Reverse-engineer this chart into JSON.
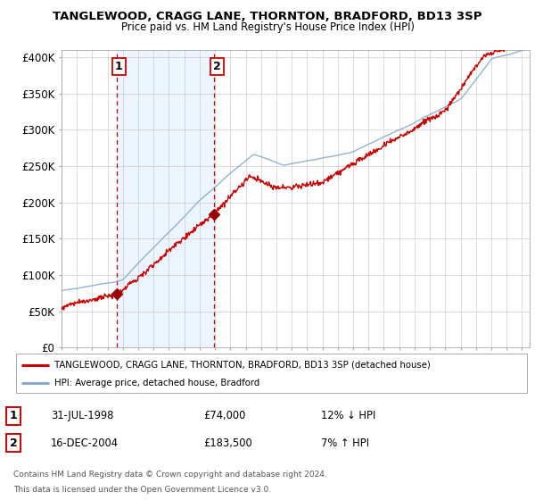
{
  "title1": "TANGLEWOOD, CRAGG LANE, THORNTON, BRADFORD, BD13 3SP",
  "title2": "Price paid vs. HM Land Registry's House Price Index (HPI)",
  "ylim": [
    0,
    410000
  ],
  "yticks": [
    0,
    50000,
    100000,
    150000,
    200000,
    250000,
    300000,
    350000,
    400000
  ],
  "ytick_labels": [
    "£0",
    "£50K",
    "£100K",
    "£150K",
    "£200K",
    "£250K",
    "£300K",
    "£350K",
    "£400K"
  ],
  "xlim_start": 1995.0,
  "xlim_end": 2025.5,
  "sale1_date": 1998.58,
  "sale1_price": 74000,
  "sale1_label": "1",
  "sale2_date": 2004.96,
  "sale2_price": 183500,
  "sale2_label": "2",
  "legend_line1": "TANGLEWOOD, CRAGG LANE, THORNTON, BRADFORD, BD13 3SP (detached house)",
  "legend_line2": "HPI: Average price, detached house, Bradford",
  "table_row1_num": "1",
  "table_row1_date": "31-JUL-1998",
  "table_row1_price": "£74,000",
  "table_row1_hpi": "12% ↓ HPI",
  "table_row2_num": "2",
  "table_row2_date": "16-DEC-2004",
  "table_row2_price": "£183,500",
  "table_row2_hpi": "7% ↑ HPI",
  "footnote1": "Contains HM Land Registry data © Crown copyright and database right 2024.",
  "footnote2": "This data is licensed under the Open Government Licence v3.0.",
  "bg_color": "#ffffff",
  "sale_line_color": "#cc0000",
  "hpi_line_color": "#88aacc",
  "sale_dot_color": "#990000",
  "vline_color": "#cc0000",
  "shade_color": "#ddeeff",
  "grid_color": "#cccccc",
  "spine_color": "#aaaaaa"
}
